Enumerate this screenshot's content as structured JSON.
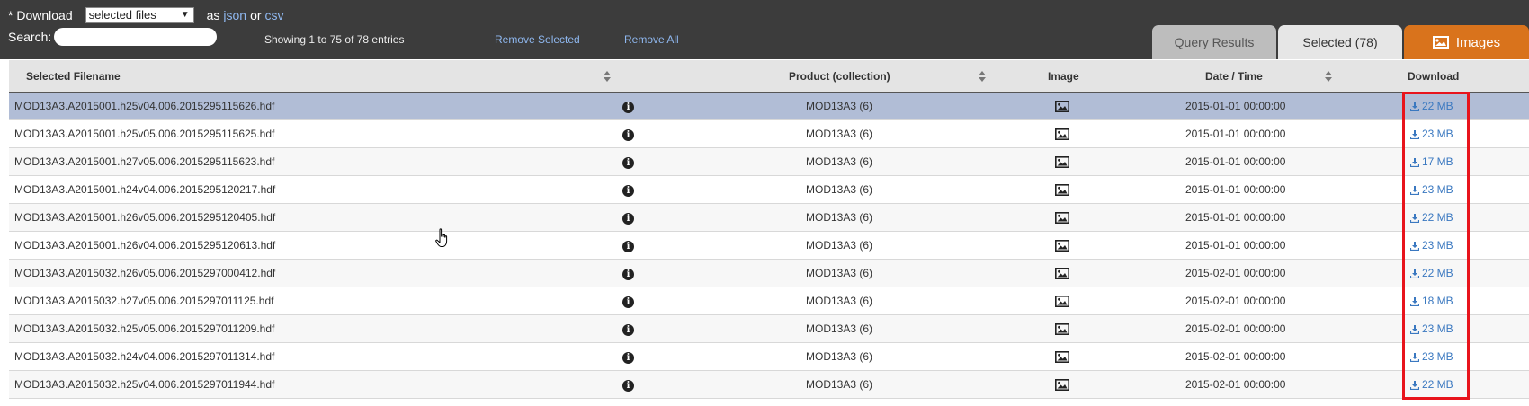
{
  "toolbar": {
    "download_prefix": "* Download",
    "download_select_value": "selected files",
    "as_label": "as",
    "json_link": "json",
    "or_label": "or",
    "csv_link": "csv",
    "search_label": "Search:",
    "search_value": "",
    "showing_text": "Showing 1 to 75 of 78 entries",
    "remove_selected": "Remove Selected",
    "remove_all": "Remove All"
  },
  "tabs": {
    "query_results": "Query Results",
    "selected": "Selected (78)",
    "images": "Images"
  },
  "table": {
    "headers": {
      "filename": "Selected Filename",
      "product": "Product (collection)",
      "image": "Image",
      "datetime": "Date / Time",
      "download": "Download"
    },
    "rows": [
      {
        "filename": "MOD13A3.A2015001.h25v04.006.2015295115626.hdf",
        "product": "MOD13A3 (6)",
        "datetime": "2015-01-01 00:00:00",
        "size": "22 MB"
      },
      {
        "filename": "MOD13A3.A2015001.h25v05.006.2015295115625.hdf",
        "product": "MOD13A3 (6)",
        "datetime": "2015-01-01 00:00:00",
        "size": "23 MB"
      },
      {
        "filename": "MOD13A3.A2015001.h27v05.006.2015295115623.hdf",
        "product": "MOD13A3 (6)",
        "datetime": "2015-01-01 00:00:00",
        "size": "17 MB"
      },
      {
        "filename": "MOD13A3.A2015001.h24v04.006.2015295120217.hdf",
        "product": "MOD13A3 (6)",
        "datetime": "2015-01-01 00:00:00",
        "size": "23 MB"
      },
      {
        "filename": "MOD13A3.A2015001.h26v05.006.2015295120405.hdf",
        "product": "MOD13A3 (6)",
        "datetime": "2015-01-01 00:00:00",
        "size": "22 MB"
      },
      {
        "filename": "MOD13A3.A2015001.h26v04.006.2015295120613.hdf",
        "product": "MOD13A3 (6)",
        "datetime": "2015-01-01 00:00:00",
        "size": "23 MB"
      },
      {
        "filename": "MOD13A3.A2015032.h26v05.006.2015297000412.hdf",
        "product": "MOD13A3 (6)",
        "datetime": "2015-02-01 00:00:00",
        "size": "22 MB"
      },
      {
        "filename": "MOD13A3.A2015032.h27v05.006.2015297011125.hdf",
        "product": "MOD13A3 (6)",
        "datetime": "2015-02-01 00:00:00",
        "size": "18 MB"
      },
      {
        "filename": "MOD13A3.A2015032.h25v05.006.2015297011209.hdf",
        "product": "MOD13A3 (6)",
        "datetime": "2015-02-01 00:00:00",
        "size": "23 MB"
      },
      {
        "filename": "MOD13A3.A2015032.h24v04.006.2015297011314.hdf",
        "product": "MOD13A3 (6)",
        "datetime": "2015-02-01 00:00:00",
        "size": "23 MB"
      },
      {
        "filename": "MOD13A3.A2015032.h25v04.006.2015297011944.hdf",
        "product": "MOD13A3 (6)",
        "datetime": "2015-02-01 00:00:00",
        "size": "22 MB"
      }
    ]
  },
  "colors": {
    "topbar_bg": "#3c3c3c",
    "link": "#8fb8f0",
    "images_tab": "#d9731c",
    "selected_row": "#b1bdd6",
    "download_link": "#3a78c0",
    "annotation_box": "#e8141c"
  },
  "icons": {
    "info": "info-circle-icon",
    "image": "image-icon",
    "download": "download-icon",
    "sort": "sort-icon",
    "pointer": "hand-pointer-icon"
  }
}
